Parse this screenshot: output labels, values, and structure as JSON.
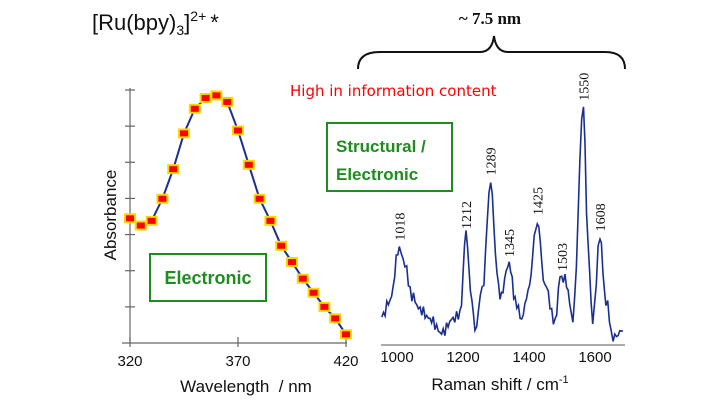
{
  "slide": {
    "title_main": "[Ru(bpy)",
    "title_sub": "3",
    "title_bracket": "]",
    "title_sup": "2+",
    "title_star": "*",
    "size_label": "~ 7.5 nm",
    "highlight": "High in information content",
    "highlight_color": "#ff0000",
    "box_electronic": "Electronic",
    "box_structural_line1": "Structural /",
    "box_structural_line2": "Electronic",
    "box_color": "#1e8c1e"
  },
  "chart_data": [
    {
      "type": "line",
      "xlabel": "Wavelength  / nm",
      "ylabel": "Absorbance",
      "x_ticks": [
        "320",
        "370",
        "420"
      ],
      "xlim": [
        320,
        420
      ],
      "ylim": [
        0,
        7
      ],
      "y_tick_count": 7,
      "line_color": "#1a2f8f",
      "marker_fill": "#ff0000",
      "marker_edge": "#ffd700",
      "x": [
        320,
        325,
        330,
        335,
        340,
        345,
        350,
        355,
        360,
        365,
        370,
        375,
        380,
        385,
        390,
        395,
        400,
        405,
        410,
        415,
        420
      ],
      "y": [
        3.45,
        3.25,
        3.38,
        3.99,
        4.81,
        5.8,
        6.48,
        6.78,
        6.85,
        6.67,
        5.88,
        4.93,
        3.99,
        3.38,
        2.69,
        2.24,
        1.78,
        1.39,
        1.0,
        0.68,
        0.24
      ]
    },
    {
      "type": "line",
      "xlabel": "Raman shift / cm",
      "xlabel_sup": "-1",
      "x_ticks": [
        "1000",
        "1200",
        "1400",
        "1600"
      ],
      "xlim": [
        950,
        1700
      ],
      "ylim": [
        0,
        1
      ],
      "line_color": "#1a2f8f",
      "x": [
        954,
        979,
        1007,
        1024,
        1045,
        1070,
        1100,
        1135,
        1170,
        1191,
        1209,
        1227,
        1236,
        1258,
        1284,
        1303,
        1312,
        1340,
        1358,
        1378,
        1397,
        1425,
        1448,
        1479,
        1494,
        1509,
        1533,
        1565,
        1579,
        1593,
        1615,
        1633,
        1655,
        1685
      ],
      "y": [
        0.1,
        0.17,
        0.4,
        0.32,
        0.19,
        0.13,
        0.09,
        0.03,
        0.09,
        0.11,
        0.45,
        0.17,
        0.04,
        0.21,
        0.68,
        0.3,
        0.18,
        0.33,
        0.17,
        0.09,
        0.21,
        0.51,
        0.24,
        0.07,
        0.27,
        0.26,
        0.1,
        1.0,
        0.39,
        0.08,
        0.44,
        0.17,
        0.01,
        0.04
      ],
      "peak_labels": [
        {
          "text": "1018",
          "x": 1007,
          "y": 0.4
        },
        {
          "text": "1212",
          "x": 1209,
          "y": 0.45
        },
        {
          "text": "1289",
          "x": 1284,
          "y": 0.68
        },
        {
          "text": "1345",
          "x": 1340,
          "y": 0.33
        },
        {
          "text": "1425",
          "x": 1425,
          "y": 0.51
        },
        {
          "text": "1503",
          "x": 1500,
          "y": 0.27
        },
        {
          "text": "1550",
          "x": 1565,
          "y": 1.0
        },
        {
          "text": "1608",
          "x": 1615,
          "y": 0.44
        }
      ]
    }
  ]
}
